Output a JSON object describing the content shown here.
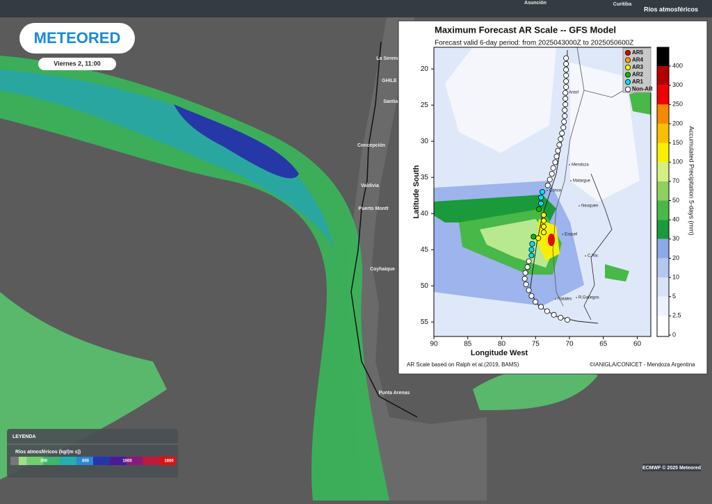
{
  "header": {
    "logo": "METEORED",
    "date": "Viernes 2, 11:00",
    "layer": "Ríos atmosféricos"
  },
  "map_labels": [
    "Asunción",
    "Curitiba",
    "La Serena",
    "GHILE",
    "Santiago",
    "Concepción",
    "Valdivia",
    "Puerto Montt",
    "Coyhaique",
    "Punta Arenas"
  ],
  "legend": {
    "title": "LEYENDA",
    "label": "Ríos atmosféricos (kg/(m s))",
    "ticks": [
      300,
      600,
      1000,
      1600
    ],
    "colors": [
      "#9ee08a",
      "#6fd06a",
      "#3cb86a",
      "#22b0b0",
      "#2a8ad0",
      "#2236b0",
      "#4a1a9a",
      "#8a1a7a",
      "#c01a3a",
      "#e01010"
    ]
  },
  "credit": "ECMWF © 2025 Meteored",
  "chart_data": {
    "type": "scatter",
    "title": "Maximum Forecast AR Scale -- GFS Model",
    "subtitle": "Forecast valid 6-day period: from 2025043000Z to 2025050600Z",
    "x_label": "Longitude West",
    "y_label": "Latitude South",
    "xlim": [
      90,
      58
    ],
    "xticks": [
      90,
      85,
      80,
      75,
      70,
      65,
      60
    ],
    "ylim": [
      57,
      17
    ],
    "yticks": [
      20,
      25,
      30,
      35,
      40,
      45,
      50,
      55
    ],
    "series": [
      {
        "name": "AR5",
        "color": "#e00000",
        "x": [],
        "y": []
      },
      {
        "name": "AR4",
        "color": "#ffa500",
        "x": [],
        "y": []
      },
      {
        "name": "AR3",
        "color": "#ffff00",
        "x": [
          73.8,
          73.8,
          73.8,
          73.8,
          74.6
        ],
        "y": [
          40.2,
          41.0,
          41.8,
          42.6,
          43.4
        ]
      },
      {
        "name": "AR2",
        "color": "#00c000",
        "x": [
          74.5,
          75.3
        ],
        "y": [
          39.4,
          43.2
        ]
      },
      {
        "name": "AR1",
        "color": "#00e0ff",
        "x": [
          74.0,
          74.2,
          74.2,
          75.5,
          75.6,
          75.6
        ],
        "y": [
          37.0,
          37.8,
          38.6,
          44.2,
          45.0,
          45.8
        ]
      },
      {
        "name": "Non-AR",
        "color": "#ffffff",
        "x": [
          70.5,
          70.5,
          70.5,
          70.5,
          70.5,
          70.5,
          70.6,
          70.6,
          70.6,
          70.7,
          70.7,
          70.8,
          70.9,
          71.1,
          71.3,
          71.5,
          71.7,
          71.9,
          72.1,
          72.4,
          72.6,
          72.9,
          73.2,
          76.0,
          76.2,
          76.5,
          76.6,
          76.4,
          76.0,
          75.6,
          75.0,
          74.2,
          73.3,
          72.3,
          71.3,
          70.3
        ],
        "y": [
          18.5,
          19.3,
          20.1,
          20.9,
          21.7,
          22.5,
          23.3,
          24.1,
          24.9,
          25.7,
          26.5,
          27.3,
          28.1,
          28.9,
          29.7,
          30.5,
          31.3,
          32.1,
          32.9,
          33.7,
          34.5,
          35.3,
          36.1,
          46.6,
          47.4,
          48.2,
          49.0,
          49.8,
          50.6,
          51.4,
          52.2,
          52.9,
          53.5,
          54.0,
          54.4,
          54.7
        ]
      }
    ],
    "place_labels": [
      "Antof",
      "Mendoza",
      "Malargue",
      "Neuquen",
      "Conce",
      "Esquel",
      "C.Riv.",
      "Natales",
      "R.Gallegos"
    ],
    "colorbar": {
      "label": "Accumulated Precipitation 5-days (mm)",
      "ticks": [
        0,
        2.5,
        5,
        10,
        20,
        30,
        40,
        50,
        70,
        100,
        150,
        200,
        250,
        300,
        400
      ],
      "colors": [
        "#ffffff",
        "#eef2fc",
        "#d8e2f8",
        "#b4c8f0",
        "#8ca8e8",
        "#1a9a3a",
        "#48b848",
        "#90d060",
        "#d4f080",
        "#f8f000",
        "#f8c000",
        "#f88800",
        "#f00000",
        "#b40000",
        "#000000"
      ]
    },
    "notes": [
      "AR Scale based on Ralph et al.(2019, BAMS)",
      "©IANIGLA/CONICET - Mendoza Argentina"
    ]
  }
}
